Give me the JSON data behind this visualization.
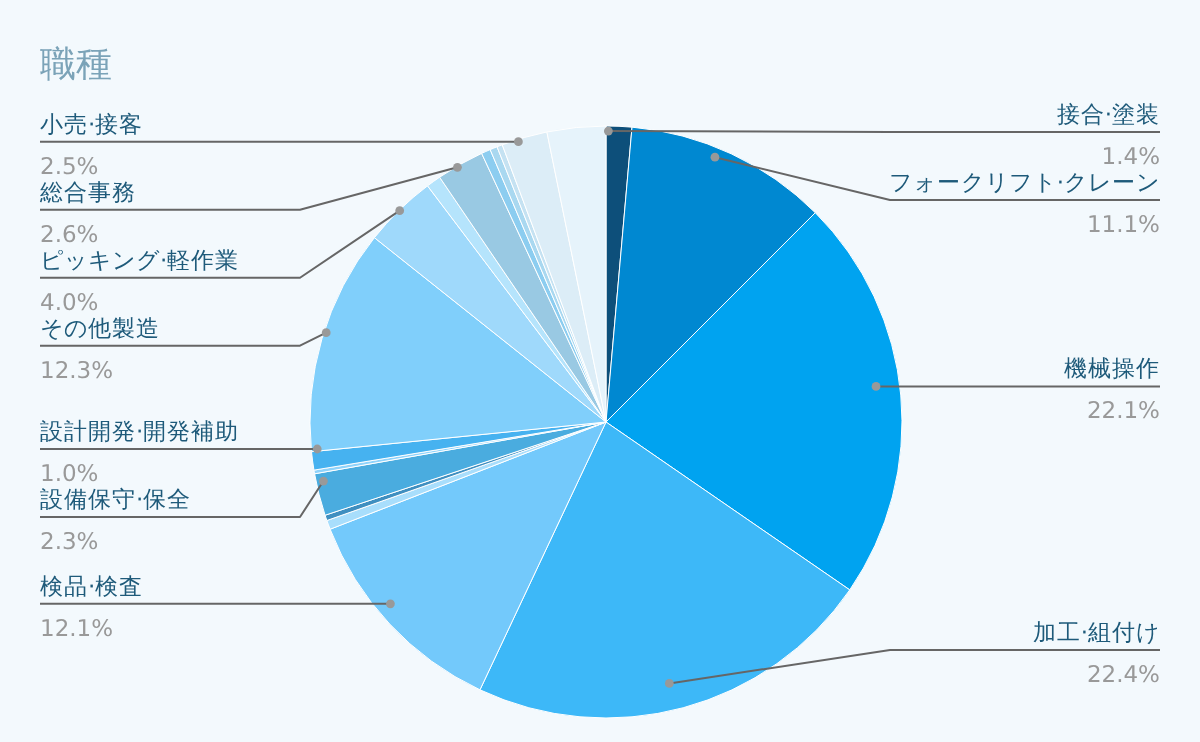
{
  "chart_data": {
    "type": "pie",
    "title": "職種",
    "categories": [
      "接合·塗装",
      "フォークリフト·クレーン",
      "機械操作",
      "加工·組付け",
      "検品·検査",
      null,
      null,
      "設備保守·保全",
      null,
      "設計開発·開発補助",
      "その他製造",
      "ピッキング·軽作業",
      null,
      "総合事務",
      null,
      null,
      null,
      "小売·接客",
      null
    ],
    "values": [
      1.4,
      11.1,
      22.1,
      22.4,
      12.1,
      0.5,
      0.3,
      2.3,
      0.2,
      1.0,
      12.3,
      4.0,
      0.8,
      2.6,
      0.5,
      0.4,
      0.3,
      2.5,
      3.2
    ],
    "value_labels": [
      "1.4%",
      "11.1%",
      "22.1%",
      "22.4%",
      "12.1%",
      null,
      null,
      "2.3%",
      null,
      "1.0%",
      "12.3%",
      "4.0%",
      null,
      "2.6%",
      null,
      null,
      null,
      "2.5%",
      null
    ],
    "colors": [
      "#0d4f7a",
      "#0088d1",
      "#00a3f0",
      "#3db8f8",
      "#73c9fb",
      "#a8defc",
      "#3f8fc0",
      "#4aacdf",
      "#8fd3fb",
      "#46b2f0",
      "#80cffb",
      "#9fd9fb",
      "#b5e4fc",
      "#99c9e3",
      "#8ccdf0",
      "#a9d8f0",
      "#c5e2f2",
      "#dcedf7",
      "#e6f3fb"
    ],
    "legend": false
  }
}
